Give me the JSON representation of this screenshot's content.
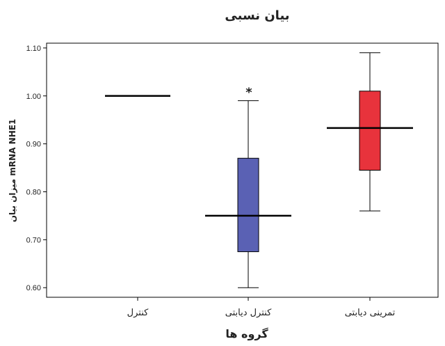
{
  "chart_data": {
    "type": "boxplot",
    "title": "بیان نسبی",
    "xlabel": "گروه ها",
    "ylabel": "میزان بیان mRNA NHE1",
    "ylim": [
      0.58,
      1.11
    ],
    "yticks": [
      1.1,
      1.0,
      0.9,
      0.8,
      0.7,
      0.6
    ],
    "ytick_labels": [
      "1.10",
      "1.00",
      "0.90",
      "0.80",
      "0.70",
      "0.60"
    ],
    "grid": false,
    "categories": [
      "کنترل",
      "کنترل دیابتی",
      "تمرینی دیابتی"
    ],
    "boxes": [
      {
        "category": "کنترل",
        "min": 1.0,
        "q1": 1.0,
        "median": 1.0,
        "q3": 1.0,
        "max": 1.0,
        "color": "#000000",
        "outlier_marker": ""
      },
      {
        "category": "کنترل دیابتی",
        "min": 0.6,
        "q1": 0.675,
        "median": 0.75,
        "q3": 0.87,
        "max": 0.99,
        "color": "#5a61b4",
        "outlier_marker": "*"
      },
      {
        "category": "تمرینی دیابتی",
        "min": 0.76,
        "q1": 0.845,
        "median": 0.933,
        "q3": 1.01,
        "max": 1.09,
        "color": "#e8333c",
        "outlier_marker": ""
      }
    ]
  }
}
